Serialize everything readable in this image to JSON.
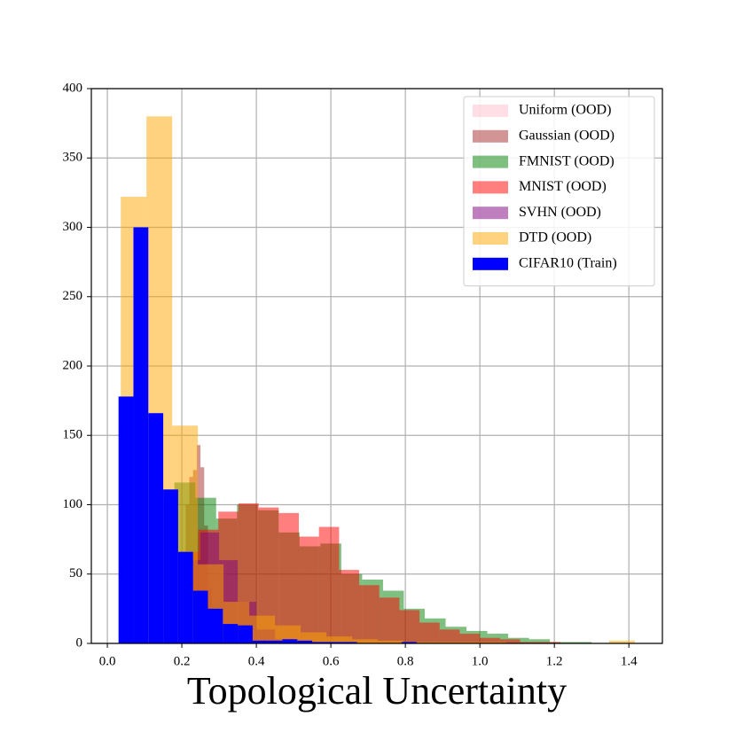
{
  "chart_data": {
    "type": "histogram",
    "x_label": "Topological Uncertainty",
    "xlim": [
      -0.043,
      1.49
    ],
    "ylim": [
      0,
      400
    ],
    "xticks": [
      {
        "value": 0,
        "label": "0.0"
      },
      0.2,
      0.4,
      0.6,
      0.8,
      {
        "value": 1,
        "label": "1.0"
      },
      1.2,
      1.4
    ],
    "yticks": [
      0,
      50,
      100,
      150,
      200,
      250,
      300,
      350,
      400
    ],
    "grid": true,
    "legend": "upper right",
    "series": [
      {
        "name": "Uniform (OOD)",
        "color": "#ffc0cb",
        "alpha": 0.5,
        "bins": [
          0.24,
          0.25,
          0.26
        ],
        "values": [
          80,
          60
        ]
      },
      {
        "name": "Gaussian (OOD)",
        "color": "#a52a2a",
        "alpha": 0.5,
        "bins": [
          0.2,
          0.21,
          0.22,
          0.23,
          0.24,
          0.25,
          0.26,
          0.27,
          0.28
        ],
        "values": [
          66,
          100,
          120,
          125,
          143,
          127,
          85,
          40
        ]
      },
      {
        "name": "FMNIST (OOD)",
        "color": "#008000",
        "alpha": 0.5,
        "bins": [
          0.18,
          0.236,
          0.292,
          0.348,
          0.404,
          0.46,
          0.516,
          0.572,
          0.628,
          0.684,
          0.74,
          0.796,
          0.852,
          0.908,
          0.964,
          1.02,
          1.076,
          1.132,
          1.188,
          1.244,
          1.3
        ],
        "values": [
          116,
          105,
          90,
          100,
          96,
          80,
          70,
          72,
          50,
          46,
          38,
          25,
          18,
          12,
          9,
          7,
          4,
          3,
          1,
          1
        ]
      },
      {
        "name": "MNIST (OOD)",
        "color": "#ff0000",
        "alpha": 0.5,
        "bins": [
          0.19,
          0.244,
          0.298,
          0.352,
          0.406,
          0.46,
          0.514,
          0.568,
          0.622,
          0.676,
          0.73,
          0.784,
          0.838,
          0.892,
          0.946,
          1.0,
          1.054,
          1.108,
          1.162,
          1.216,
          1.27
        ],
        "values": [
          66,
          82,
          95,
          101,
          98,
          94,
          77,
          84,
          53,
          42,
          33,
          24,
          15,
          10,
          7,
          4,
          3,
          1,
          1,
          0
        ]
      },
      {
        "name": "SVHN (OOD)",
        "color": "#800080",
        "alpha": 0.5,
        "bins": [
          0.2,
          0.25,
          0.3,
          0.35,
          0.4,
          0.45,
          0.5
        ],
        "values": [
          60,
          80,
          60,
          30,
          10,
          3
        ]
      },
      {
        "name": "DTD (OOD)",
        "color": "#ffa500",
        "alpha": 0.5,
        "bins": [
          0.036,
          0.105,
          0.174,
          0.243,
          0.312,
          0.381,
          0.45,
          0.519,
          0.588,
          0.657,
          0.726,
          0.795,
          0.864,
          0.933,
          1.002,
          1.071,
          1.14,
          1.209,
          1.278,
          1.347,
          1.416
        ],
        "values": [
          322,
          380,
          157,
          57,
          30,
          20,
          13,
          8,
          5,
          3,
          2,
          1,
          1,
          1,
          1,
          0,
          0,
          0,
          0,
          2
        ]
      },
      {
        "name": "CIFAR10 (Train)",
        "color": "#0000ff",
        "alpha": 1,
        "bins": [
          0.03,
          0.07,
          0.11,
          0.15,
          0.19,
          0.23,
          0.27,
          0.31,
          0.35,
          0.39,
          0.43,
          0.47,
          0.51,
          0.55,
          0.59,
          0.63,
          0.67,
          0.71,
          0.75,
          0.79,
          0.83
        ],
        "values": [
          178,
          300,
          166,
          111,
          66,
          38,
          25,
          14,
          13,
          2,
          2,
          3,
          2,
          1,
          1,
          1,
          0,
          0,
          0,
          1
        ]
      }
    ]
  }
}
